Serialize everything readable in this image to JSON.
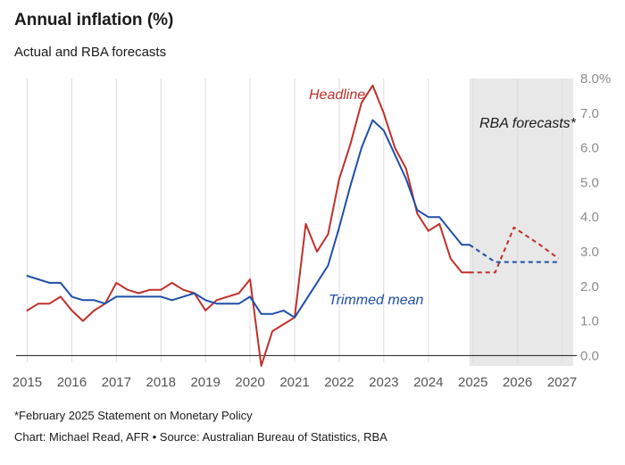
{
  "chart_data": {
    "type": "line",
    "title": "Annual inflation (%)",
    "subtitle": "Actual and RBA forecasts",
    "xlabel": "",
    "ylabel": "",
    "xlim": [
      2014.75,
      2027.25
    ],
    "ylim": [
      -0.3,
      8.0
    ],
    "yticks": [
      0,
      1,
      2,
      3,
      4,
      5,
      6,
      7,
      8
    ],
    "ytick_labels": [
      "0.0",
      "1.0",
      "2.0",
      "3.0",
      "4.0",
      "5.0",
      "6.0",
      "7.0",
      "8.0%"
    ],
    "xticks": [
      2015,
      2016,
      2017,
      2018,
      2019,
      2020,
      2021,
      2022,
      2023,
      2024,
      2025,
      2026,
      2027
    ],
    "xtick_labels": [
      "2015",
      "2016",
      "2017",
      "2018",
      "2019",
      "2020",
      "2021",
      "2022",
      "2023",
      "2024",
      "2025",
      "2026",
      "2027"
    ],
    "grid": "vertical",
    "forecast_region": {
      "start": 2024.92,
      "end": 2027.25,
      "label": "RBA forecasts*"
    },
    "series": [
      {
        "name": "Headline",
        "color": "#c0302b",
        "label": "Headline",
        "x": [
          2015.0,
          2015.25,
          2015.5,
          2015.75,
          2016.0,
          2016.25,
          2016.5,
          2016.75,
          2017.0,
          2017.25,
          2017.5,
          2017.75,
          2018.0,
          2018.25,
          2018.5,
          2018.75,
          2019.0,
          2019.25,
          2019.5,
          2019.75,
          2020.0,
          2020.25,
          2020.5,
          2020.75,
          2021.0,
          2021.25,
          2021.5,
          2021.75,
          2022.0,
          2022.25,
          2022.5,
          2022.75,
          2023.0,
          2023.25,
          2023.5,
          2023.75,
          2024.0,
          2024.25,
          2024.5,
          2024.75,
          2024.92
        ],
        "values": [
          1.3,
          1.5,
          1.5,
          1.7,
          1.3,
          1.0,
          1.3,
          1.5,
          2.1,
          1.9,
          1.8,
          1.9,
          1.9,
          2.1,
          1.9,
          1.8,
          1.3,
          1.6,
          1.7,
          1.8,
          2.2,
          -0.3,
          0.7,
          0.9,
          1.1,
          3.8,
          3.0,
          3.5,
          5.1,
          6.1,
          7.3,
          7.8,
          7.0,
          6.0,
          5.4,
          4.1,
          3.6,
          3.8,
          2.8,
          2.4,
          2.4
        ]
      },
      {
        "name": "Trimmed mean",
        "color": "#1f4fa8",
        "label": "Trimmed mean",
        "x": [
          2015.0,
          2015.25,
          2015.5,
          2015.75,
          2016.0,
          2016.25,
          2016.5,
          2016.75,
          2017.0,
          2017.25,
          2017.5,
          2017.75,
          2018.0,
          2018.25,
          2018.5,
          2018.75,
          2019.0,
          2019.25,
          2019.5,
          2019.75,
          2020.0,
          2020.25,
          2020.5,
          2020.75,
          2021.0,
          2021.25,
          2021.5,
          2021.75,
          2022.0,
          2022.25,
          2022.5,
          2022.75,
          2023.0,
          2023.25,
          2023.5,
          2023.75,
          2024.0,
          2024.25,
          2024.5,
          2024.75,
          2024.92
        ],
        "values": [
          2.3,
          2.2,
          2.1,
          2.1,
          1.7,
          1.6,
          1.6,
          1.5,
          1.7,
          1.7,
          1.7,
          1.7,
          1.7,
          1.6,
          1.7,
          1.8,
          1.6,
          1.5,
          1.5,
          1.5,
          1.7,
          1.2,
          1.2,
          1.3,
          1.1,
          1.6,
          2.1,
          2.6,
          3.7,
          4.9,
          6.0,
          6.8,
          6.5,
          5.8,
          5.1,
          4.2,
          4.0,
          4.0,
          3.6,
          3.2,
          3.2
        ]
      },
      {
        "name": "Headline forecast",
        "color": "#c0302b",
        "dashed": true,
        "x": [
          2024.92,
          2025.5,
          2025.92,
          2026.5,
          2026.92
        ],
        "values": [
          2.4,
          2.4,
          3.7,
          3.2,
          2.8
        ]
      },
      {
        "name": "Trimmed mean forecast",
        "color": "#1f4fa8",
        "dashed": true,
        "x": [
          2024.92,
          2025.5,
          2025.92,
          2026.5,
          2026.92
        ],
        "values": [
          3.2,
          2.7,
          2.7,
          2.7,
          2.7
        ]
      }
    ]
  },
  "footnote": "*February 2025 Statement on Monetary Policy",
  "credit": "Chart: Michael Read, AFR • Source: Australian Bureau of Statistics, RBA"
}
